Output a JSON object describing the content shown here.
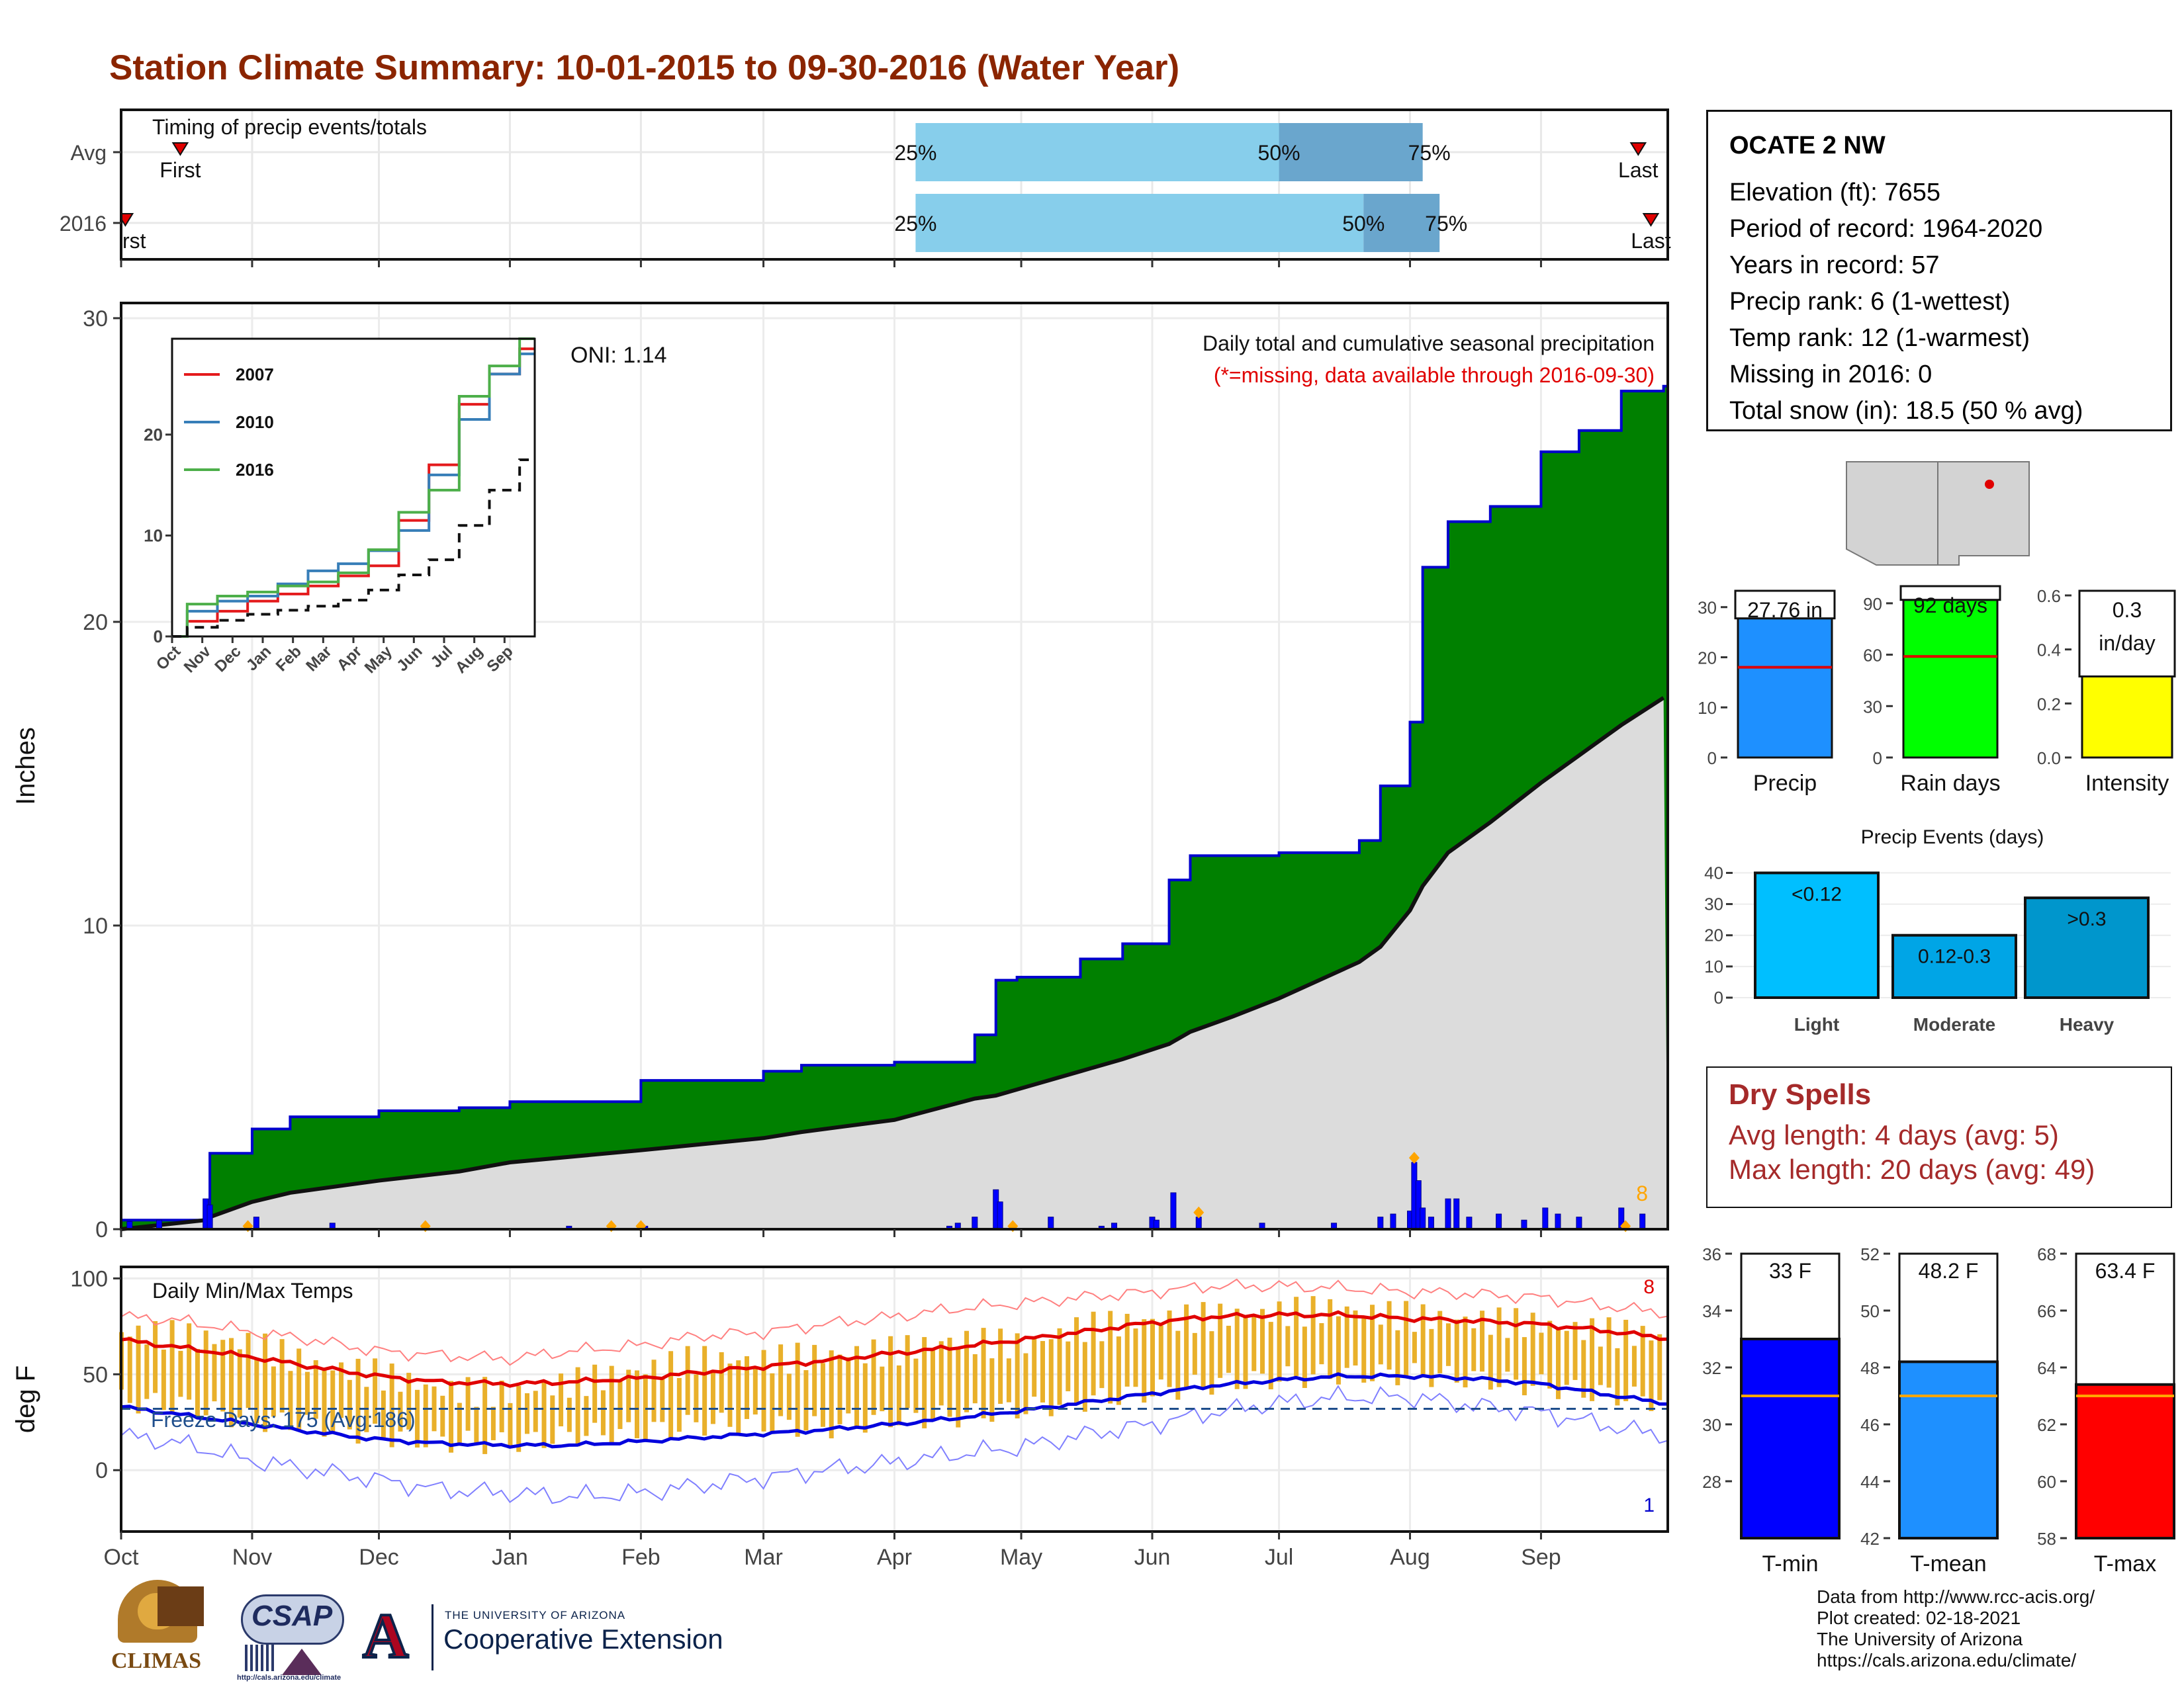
{
  "title": "Station Climate Summary: 10-01-2015 to 09-30-2016 (Water Year)",
  "timing": {
    "title": "Timing of precip events/totals",
    "rows": [
      {
        "label": "Avg",
        "first_label": "First",
        "last_label": "Last",
        "pct_labels": [
          "25%",
          "50%",
          "75%"
        ]
      },
      {
        "label": "2016",
        "first_label": "First",
        "last_label": "Last",
        "pct_labels": [
          "25%",
          "50%",
          "75%"
        ]
      }
    ]
  },
  "station": {
    "name": "OCATE 2 NW",
    "lines": [
      "Elevation (ft): 7655",
      "Period of record: 1964-2020",
      "Years in record: 57",
      "Precip rank: 6 (1-wettest)",
      "Temp rank: 12 (1-warmest)",
      "Missing in 2016: 0",
      "Total snow (in): 18.5 (50 % avg)"
    ]
  },
  "precip_panel": {
    "ylabel": "Inches",
    "y_ticks": [
      "0",
      "10",
      "20",
      "30"
    ],
    "subtitle1": "Daily total and cumulative seasonal precipitation",
    "subtitle2": "(*=missing, data available through 2016-09-30)",
    "oni": "ONI: 1.14",
    "count_label": "8",
    "inset": {
      "legend": [
        "2007",
        "2010",
        "2016"
      ],
      "y_ticks": [
        "0",
        "10",
        "20"
      ],
      "x_ticks": [
        "Oct",
        "Nov",
        "Dec",
        "Jan",
        "Feb",
        "Mar",
        "Apr",
        "May",
        "Jun",
        "Jul",
        "Aug",
        "Sep"
      ]
    }
  },
  "temp_panel": {
    "ylabel": "deg F",
    "title": "Daily Min/Max Temps",
    "freeze_label": "Freeze Days: 175 (Avg:186)",
    "y_ticks": [
      "0",
      "50",
      "100"
    ],
    "record_high_count": "8",
    "record_low_count": "1"
  },
  "x_axis": {
    "ticks": [
      "Oct",
      "Nov",
      "Dec",
      "Jan",
      "Feb",
      "Mar",
      "Apr",
      "May",
      "Jun",
      "Jul",
      "Aug",
      "Sep"
    ]
  },
  "stat_bars": [
    {
      "name": "Precip",
      "value_label": "27.76 in",
      "ticks": [
        "0",
        "10",
        "20",
        "30"
      ]
    },
    {
      "name": "Rain days",
      "value_label": "92 days",
      "ticks": [
        "0",
        "30",
        "60",
        "90"
      ]
    },
    {
      "name": "Intensity",
      "value_label": "0.3\nin/day",
      "ticks": [
        "0.0",
        "0.2",
        "0.4",
        "0.6"
      ]
    }
  ],
  "events": {
    "title": "Precip Events (days)",
    "y_ticks": [
      "0",
      "10",
      "20",
      "30",
      "40"
    ],
    "bars": [
      {
        "category": "Light",
        "label": "<0.12"
      },
      {
        "category": "Moderate",
        "label": "0.12-0.3"
      },
      {
        "category": "Heavy",
        "label": ">0.3"
      }
    ]
  },
  "dry_spells": {
    "title": "Dry Spells",
    "lines": [
      "Avg length: 4 days (avg: 5)",
      "Max length: 20 days (avg: 49)"
    ]
  },
  "temp_bars": [
    {
      "name": "T-min",
      "value_label": "33 F",
      "ticks": [
        "28",
        "30",
        "32",
        "34",
        "36"
      ]
    },
    {
      "name": "T-mean",
      "value_label": "48.2 F",
      "ticks": [
        "42",
        "44",
        "46",
        "48",
        "50",
        "52"
      ]
    },
    {
      "name": "T-max",
      "value_label": "63.4 F",
      "ticks": [
        "58",
        "60",
        "62",
        "64",
        "66",
        "68"
      ]
    }
  ],
  "footer": {
    "lines": [
      "Data from http://www.rcc-acis.org/",
      "Plot created: 02-18-2021",
      "The University of Arizona",
      "https://cals.arizona.edu/climate/"
    ],
    "climas": "CLIMAS",
    "csap": "CSAP",
    "csap_url": "http://cals.arizona.edu/climate",
    "ua_small": "THE UNIVERSITY OF ARIZONA",
    "ua_big": "Cooperative Extension"
  },
  "chart_data": [
    {
      "type": "bar",
      "name": "timing",
      "categories": [
        "Avg",
        "2016"
      ],
      "series": [
        {
          "name": "25%",
          "values": [
            "2016-04-06",
            "2016-04-06"
          ]
        },
        {
          "name": "50%",
          "values": [
            "2016-07-01",
            "2016-07-21"
          ]
        },
        {
          "name": "75%",
          "values": [
            "2016-08-04",
            "2016-08-08"
          ]
        },
        {
          "name": "First",
          "values": [
            "2015-10-15",
            "2015-10-02"
          ]
        },
        {
          "name": "Last",
          "values": [
            "2016-09-24",
            "2016-09-27"
          ]
        }
      ]
    },
    {
      "type": "area",
      "name": "cumulative precipitation",
      "ylabel": "Inches",
      "ylim": [
        0,
        30
      ],
      "x_dates": [
        "2015-10-01",
        "2015-10-21",
        "2015-10-22",
        "2015-11-01",
        "2015-11-10",
        "2015-12-01",
        "2015-12-20",
        "2016-01-01",
        "2016-02-01",
        "2016-03-01",
        "2016-03-10",
        "2016-04-01",
        "2016-04-20",
        "2016-04-25",
        "2016-04-30",
        "2016-05-15",
        "2016-05-25",
        "2016-06-05",
        "2016-06-10",
        "2016-06-20",
        "2016-07-01",
        "2016-07-20",
        "2016-07-25",
        "2016-08-01",
        "2016-08-04",
        "2016-08-10",
        "2016-08-20",
        "2016-09-01",
        "2016-09-10",
        "2016-09-20",
        "2016-09-30"
      ],
      "cumulative_2016": [
        0.3,
        0.4,
        2.5,
        3.3,
        3.7,
        3.9,
        4.0,
        4.2,
        4.9,
        5.2,
        5.4,
        5.5,
        6.4,
        8.2,
        8.3,
        8.9,
        9.4,
        11.5,
        12.3,
        12.3,
        12.4,
        12.8,
        14.6,
        16.7,
        21.8,
        23.3,
        23.8,
        25.6,
        26.3,
        27.6,
        27.76
      ],
      "avg_cumulative": [
        0,
        0.3,
        0.4,
        0.9,
        1.2,
        1.6,
        1.9,
        2.2,
        2.6,
        3.0,
        3.2,
        3.6,
        4.3,
        4.4,
        4.6,
        5.2,
        5.6,
        6.1,
        6.5,
        7.0,
        7.6,
        8.8,
        9.3,
        10.5,
        11.3,
        12.4,
        13.4,
        14.7,
        15.6,
        16.6,
        17.5
      ],
      "daily_x": [
        "2015-10-03",
        "2015-10-10",
        "2015-10-21",
        "2015-10-22",
        "2015-11-02",
        "2015-11-20",
        "2016-01-15",
        "2016-02-02",
        "2016-04-14",
        "2016-04-16",
        "2016-04-20",
        "2016-04-25",
        "2016-04-26",
        "2016-05-08",
        "2016-05-20",
        "2016-05-23",
        "2016-06-01",
        "2016-06-02",
        "2016-06-06",
        "2016-06-12",
        "2016-06-27",
        "2016-07-14",
        "2016-07-25",
        "2016-07-28",
        "2016-08-01",
        "2016-08-02",
        "2016-08-03",
        "2016-08-04",
        "2016-08-06",
        "2016-08-10",
        "2016-08-12",
        "2016-08-15",
        "2016-08-22",
        "2016-08-28",
        "2016-09-02",
        "2016-09-05",
        "2016-09-10",
        "2016-09-20",
        "2016-09-25"
      ],
      "daily_values": [
        0.25,
        0.3,
        1.0,
        0.8,
        0.4,
        0.2,
        0.1,
        0.1,
        0.1,
        0.2,
        0.4,
        1.3,
        0.9,
        0.4,
        0.1,
        0.2,
        0.4,
        0.3,
        1.2,
        0.4,
        0.2,
        0.2,
        0.4,
        0.5,
        0.6,
        2.2,
        1.6,
        0.7,
        0.4,
        1.0,
        1.0,
        0.4,
        0.5,
        0.3,
        0.7,
        0.5,
        0.4,
        0.7,
        0.5
      ],
      "record_markers_x": [
        "2015-10-31",
        "2015-12-12",
        "2016-01-25",
        "2016-02-01",
        "2016-04-29",
        "2016-06-12",
        "2016-08-02",
        "2016-09-21"
      ]
    },
    {
      "type": "line",
      "name": "inset cumulative",
      "series": [
        {
          "name": "2007",
          "x": [
            "Oct",
            "Nov",
            "Dec",
            "Jan",
            "Feb",
            "Mar",
            "Apr",
            "May",
            "Jun",
            "Jul",
            "Aug",
            "Sep",
            "Sep-end"
          ],
          "values": [
            0,
            1.5,
            2.5,
            3.5,
            4.2,
            5.0,
            6.0,
            7.0,
            11.5,
            17.0,
            23.0,
            26.0,
            28.5
          ]
        },
        {
          "name": "2010",
          "x": [
            "Oct",
            "Nov",
            "Dec",
            "Jan",
            "Feb",
            "Mar",
            "Apr",
            "May",
            "Jun",
            "Jul",
            "Aug",
            "Sep",
            "Sep-end"
          ],
          "values": [
            0,
            2.5,
            3.5,
            4.0,
            5.2,
            6.5,
            7.2,
            8.5,
            10.5,
            16.0,
            21.5,
            26.0,
            28.0
          ]
        },
        {
          "name": "2016",
          "x": [
            "Oct",
            "Nov",
            "Dec",
            "Jan",
            "Feb",
            "Mar",
            "Apr",
            "May",
            "Jun",
            "Jul",
            "Aug",
            "Sep",
            "Sep-end"
          ],
          "values": [
            0,
            3.2,
            4.0,
            4.4,
            5.0,
            5.4,
            6.3,
            8.6,
            12.3,
            14.5,
            23.8,
            26.8,
            29.5
          ]
        },
        {
          "name": "avg",
          "x": [
            "Oct",
            "Nov",
            "Dec",
            "Jan",
            "Feb",
            "Mar",
            "Apr",
            "May",
            "Jun",
            "Jul",
            "Aug",
            "Sep",
            "Sep-end"
          ],
          "values": [
            0,
            0.9,
            1.6,
            2.2,
            2.6,
            3.0,
            3.6,
            4.6,
            6.1,
            7.6,
            11.0,
            14.5,
            17.5
          ]
        }
      ],
      "ylim": [
        0,
        30
      ]
    },
    {
      "type": "line",
      "name": "daily temps",
      "ylabel": "deg F",
      "ylim": [
        -30,
        105
      ],
      "x_dates": [
        "2015-10-01",
        "2015-10-15",
        "2015-11-01",
        "2015-11-15",
        "2015-12-01",
        "2015-12-15",
        "2016-01-01",
        "2016-01-15",
        "2016-02-01",
        "2016-02-15",
        "2016-03-01",
        "2016-03-15",
        "2016-04-01",
        "2016-04-15",
        "2016-05-01",
        "2016-05-15",
        "2016-06-01",
        "2016-06-15",
        "2016-07-01",
        "2016-07-15",
        "2016-08-01",
        "2016-08-15",
        "2016-09-01",
        "2016-09-15",
        "2016-09-30"
      ],
      "avg_max": [
        68,
        64,
        59,
        54,
        49,
        46,
        45,
        46,
        48,
        51,
        54,
        57,
        61,
        64,
        68,
        72,
        77,
        80,
        81,
        81,
        79,
        78,
        76,
        73,
        69
      ],
      "avg_min": [
        33,
        29,
        24,
        20,
        16,
        14,
        13,
        13,
        15,
        17,
        19,
        21,
        24,
        27,
        31,
        35,
        40,
        44,
        47,
        49,
        49,
        48,
        45,
        40,
        35
      ],
      "obs_max": [
        72,
        70,
        66,
        55,
        50,
        42,
        40,
        45,
        52,
        58,
        57,
        60,
        62,
        68,
        65,
        74,
        78,
        80,
        82,
        84,
        80,
        78,
        76,
        72,
        70
      ],
      "obs_min": [
        36,
        34,
        26,
        24,
        18,
        15,
        14,
        18,
        20,
        24,
        24,
        22,
        27,
        28,
        32,
        36,
        41,
        45,
        48,
        50,
        50,
        48,
        44,
        40,
        36
      ],
      "record_max": [
        80,
        78,
        72,
        68,
        62,
        60,
        58,
        62,
        65,
        70,
        72,
        76,
        80,
        84,
        87,
        90,
        93,
        96,
        96,
        95,
        93,
        92,
        90,
        86,
        82
      ],
      "record_min": [
        18,
        14,
        5,
        0,
        -5,
        -10,
        -12,
        -14,
        -12,
        -8,
        -4,
        0,
        4,
        8,
        12,
        18,
        24,
        30,
        35,
        38,
        38,
        34,
        30,
        24,
        18
      ],
      "freeze_line": 32
    },
    {
      "type": "bar",
      "name": "Precip",
      "value": 27.76,
      "avg": 18,
      "ylim": [
        0,
        33
      ]
    },
    {
      "type": "bar",
      "name": "Rain days",
      "value": 92,
      "avg": 59,
      "ylim": [
        0,
        100
      ]
    },
    {
      "type": "bar",
      "name": "Intensity",
      "value": 0.3,
      "avg": 0.31,
      "ylim": [
        0,
        0.6
      ]
    },
    {
      "type": "bar",
      "name": "Precip Events (days)",
      "categories": [
        "Light",
        "Moderate",
        "Heavy"
      ],
      "values": [
        40,
        20,
        32
      ],
      "ylim": [
        0,
        40
      ]
    },
    {
      "type": "bar",
      "name": "T-min",
      "value": 33,
      "avg": 31,
      "ylim": [
        26,
        36
      ]
    },
    {
      "type": "bar",
      "name": "T-mean",
      "value": 48.2,
      "avg": 47,
      "ylim": [
        42,
        52
      ]
    },
    {
      "type": "bar",
      "name": "T-max",
      "value": 63.4,
      "avg": 63,
      "ylim": [
        58,
        68
      ]
    }
  ]
}
